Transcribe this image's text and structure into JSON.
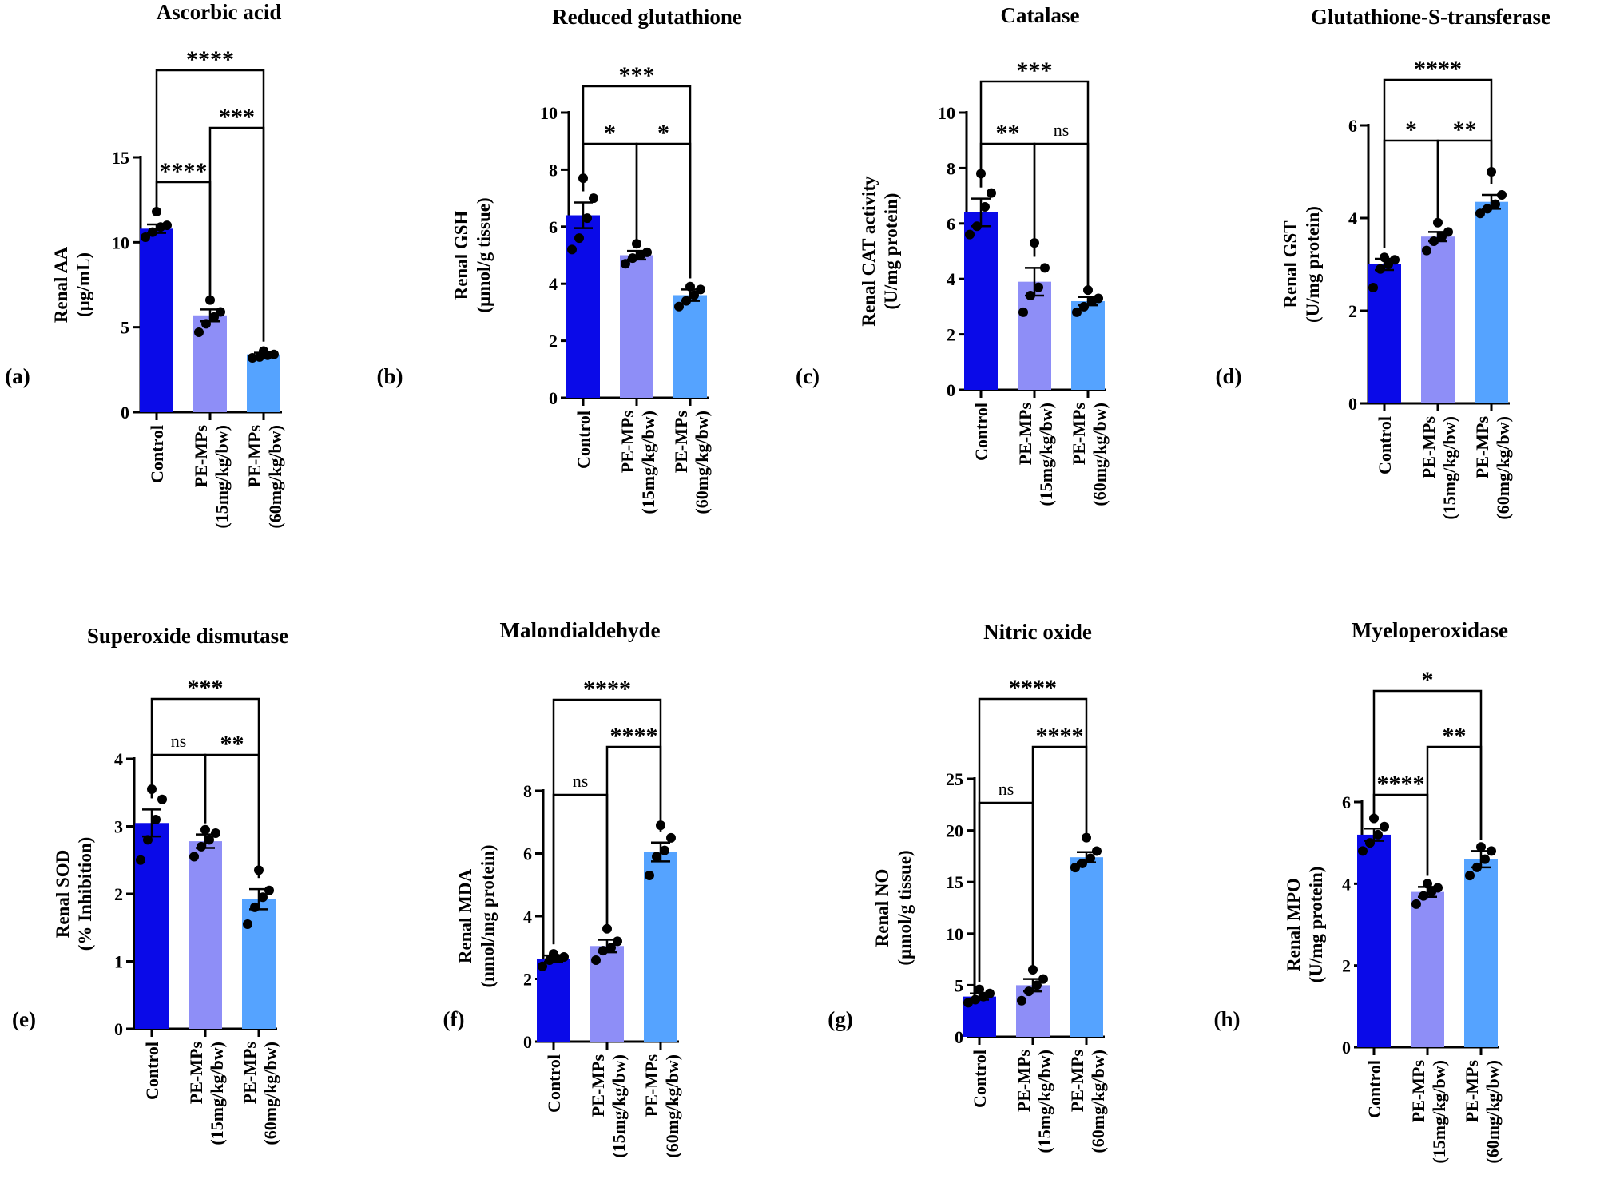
{
  "colors": {
    "control": "#0a0ae8",
    "low": "#8e8ef7",
    "high": "#55a3ff",
    "ink": "#000000"
  },
  "categories": [
    "Control",
    "PE-MPs\n(15mg/kg/bw)",
    "PE-MPs\n(60mg/kg/bw)"
  ],
  "chart_data": [
    {
      "type": "bar",
      "panel": "(a)",
      "title": "Ascorbic acid",
      "ylabel": "Renal AA",
      "yunit": "(µg/mL)",
      "ylim": [
        0,
        15
      ],
      "yticks": [
        0,
        5,
        10,
        15
      ],
      "categories": [
        "Control",
        "PE-MPs (15mg/kg/bw)",
        "PE-MPs (60mg/kg/bw)"
      ],
      "values": [
        10.8,
        5.7,
        3.4
      ],
      "sem": [
        0.25,
        0.35,
        0.1
      ],
      "points": [
        [
          10.3,
          10.6,
          10.9,
          11.0,
          11.8
        ],
        [
          4.7,
          5.2,
          5.6,
          5.9,
          6.6
        ],
        [
          3.2,
          3.25,
          3.35,
          3.4,
          3.6
        ]
      ],
      "comparisons": [
        {
          "from": 0,
          "to": 2,
          "label": "****",
          "level": 1
        },
        {
          "from": 1,
          "to": 2,
          "label": "***",
          "level": 2
        },
        {
          "from": 0,
          "to": 1,
          "label": "****",
          "level": 3
        }
      ]
    },
    {
      "type": "bar",
      "panel": "(b)",
      "title": "Reduced glutathione",
      "ylabel": "Renal GSH",
      "yunit": "(µmol/g tissue)",
      "ylim": [
        0,
        10
      ],
      "yticks": [
        0,
        2,
        4,
        6,
        8,
        10
      ],
      "categories": [
        "Control",
        "PE-MPs (15mg/kg/bw)",
        "PE-MPs (60mg/kg/bw)"
      ],
      "values": [
        6.4,
        5.0,
        3.6
      ],
      "sem": [
        0.45,
        0.15,
        0.2
      ],
      "points": [
        [
          5.2,
          5.6,
          6.3,
          7.0,
          7.7
        ],
        [
          4.7,
          4.9,
          5.0,
          5.1,
          5.4
        ],
        [
          3.2,
          3.4,
          3.6,
          3.8,
          3.9
        ]
      ],
      "comparisons": [
        {
          "from": 0,
          "to": 2,
          "label": "***",
          "level": 1
        },
        {
          "from": 0,
          "to": 1,
          "label": "*",
          "level": 2
        },
        {
          "from": 1,
          "to": 2,
          "label": "*",
          "level": 2
        }
      ]
    },
    {
      "type": "bar",
      "panel": "(c)",
      "title": "Catalase",
      "ylabel": "Renal CAT activity",
      "yunit": "(U/mg protein)",
      "ylim": [
        0,
        10
      ],
      "yticks": [
        0,
        2,
        4,
        6,
        8,
        10
      ],
      "categories": [
        "Control",
        "PE-MPs (15mg/kg/bw)",
        "PE-MPs (60mg/kg/bw)"
      ],
      "values": [
        6.4,
        3.9,
        3.2
      ],
      "sem": [
        0.5,
        0.5,
        0.15
      ],
      "points": [
        [
          5.6,
          5.9,
          6.6,
          7.1,
          7.8
        ],
        [
          2.8,
          3.4,
          3.7,
          4.4,
          5.3
        ],
        [
          2.8,
          3.0,
          3.2,
          3.3,
          3.6
        ]
      ],
      "comparisons": [
        {
          "from": 0,
          "to": 2,
          "label": "***",
          "level": 1
        },
        {
          "from": 0,
          "to": 1,
          "label": "**",
          "level": 2
        },
        {
          "from": 1,
          "to": 2,
          "label": "ns",
          "level": 2
        }
      ]
    },
    {
      "type": "bar",
      "panel": "(d)",
      "title": "Glutathione-S-transferase",
      "ylabel": "Renal GST",
      "yunit": "(U/mg protein)",
      "ylim": [
        0,
        6
      ],
      "yticks": [
        0,
        2,
        4,
        6
      ],
      "categories": [
        "Control",
        "PE-MPs (15mg/kg/bw)",
        "PE-MPs (60mg/kg/bw)"
      ],
      "values": [
        3.0,
        3.6,
        4.35
      ],
      "sem": [
        0.12,
        0.1,
        0.15
      ],
      "points": [
        [
          2.5,
          2.9,
          3.0,
          3.1,
          3.15
        ],
        [
          3.3,
          3.5,
          3.6,
          3.7,
          3.9
        ],
        [
          4.1,
          4.2,
          4.3,
          4.5,
          5.0
        ]
      ],
      "comparisons": [
        {
          "from": 0,
          "to": 2,
          "label": "****",
          "level": 1
        },
        {
          "from": 0,
          "to": 1,
          "label": "*",
          "level": 2
        },
        {
          "from": 1,
          "to": 2,
          "label": "**",
          "level": 2
        }
      ]
    },
    {
      "type": "bar",
      "panel": "(e)",
      "title": "Superoxide dismutase",
      "ylabel": "Renal SOD",
      "yunit": "(% Inhibition)",
      "ylim": [
        0,
        4
      ],
      "yticks": [
        0,
        1,
        2,
        3,
        4
      ],
      "categories": [
        "Control",
        "PE-MPs (15mg/kg/bw)",
        "PE-MPs (60mg/kg/bw)"
      ],
      "values": [
        3.05,
        2.78,
        1.92
      ],
      "sem": [
        0.2,
        0.1,
        0.15
      ],
      "points": [
        [
          2.5,
          2.8,
          3.1,
          3.4,
          3.55
        ],
        [
          2.55,
          2.7,
          2.8,
          2.9,
          2.95
        ],
        [
          1.55,
          1.8,
          1.95,
          2.05,
          2.35
        ]
      ],
      "comparisons": [
        {
          "from": 0,
          "to": 2,
          "label": "***",
          "level": 1
        },
        {
          "from": 0,
          "to": 1,
          "label": "ns",
          "level": 2
        },
        {
          "from": 1,
          "to": 2,
          "label": "**",
          "level": 2
        }
      ]
    },
    {
      "type": "bar",
      "panel": "(f)",
      "title": "Malondialdehyde",
      "ylabel": "Renal MDA",
      "yunit": "(nmol/mg protein)",
      "ylim": [
        0,
        8
      ],
      "yticks": [
        0,
        2,
        4,
        6,
        8
      ],
      "categories": [
        "Control",
        "PE-MPs (15mg/kg/bw)",
        "PE-MPs (60mg/kg/bw)"
      ],
      "values": [
        2.65,
        3.05,
        6.05
      ],
      "sem": [
        0.1,
        0.2,
        0.3
      ],
      "points": [
        [
          2.4,
          2.6,
          2.65,
          2.7,
          2.8
        ],
        [
          2.6,
          2.9,
          3.0,
          3.2,
          3.6
        ],
        [
          5.3,
          5.9,
          6.1,
          6.5,
          6.9
        ]
      ],
      "comparisons": [
        {
          "from": 0,
          "to": 2,
          "label": "****",
          "level": 1
        },
        {
          "from": 1,
          "to": 2,
          "label": "****",
          "level": 2
        },
        {
          "from": 0,
          "to": 1,
          "label": "ns",
          "level": 3
        }
      ]
    },
    {
      "type": "bar",
      "panel": "(g)",
      "title": "Nitric oxide",
      "ylabel": "Renal NO",
      "yunit": "(µmol/g tissue)",
      "ylim": [
        0,
        25
      ],
      "yticks": [
        0,
        5,
        10,
        15,
        20,
        25
      ],
      "categories": [
        "Control",
        "PE-MPs (15mg/kg/bw)",
        "PE-MPs (60mg/kg/bw)"
      ],
      "values": [
        3.9,
        5.0,
        17.4
      ],
      "sem": [
        0.3,
        0.6,
        0.5
      ],
      "points": [
        [
          3.3,
          3.6,
          3.9,
          4.2,
          4.6
        ],
        [
          3.5,
          4.4,
          5.0,
          5.6,
          6.5
        ],
        [
          16.4,
          16.8,
          17.3,
          18.0,
          19.3
        ]
      ],
      "comparisons": [
        {
          "from": 0,
          "to": 2,
          "label": "****",
          "level": 1
        },
        {
          "from": 1,
          "to": 2,
          "label": "****",
          "level": 2
        },
        {
          "from": 0,
          "to": 1,
          "label": "ns",
          "level": 3
        }
      ]
    },
    {
      "type": "bar",
      "panel": "(h)",
      "title": "Myeloperoxidase",
      "ylabel": "Renal MPO",
      "yunit": "(U/mg protein)",
      "ylim": [
        0,
        6
      ],
      "yticks": [
        0,
        2,
        4,
        6
      ],
      "categories": [
        "Control",
        "PE-MPs (15mg/kg/bw)",
        "PE-MPs (60mg/kg/bw)"
      ],
      "values": [
        5.2,
        3.8,
        4.6
      ],
      "sem": [
        0.15,
        0.12,
        0.2
      ],
      "points": [
        [
          4.8,
          5.0,
          5.2,
          5.4,
          5.6
        ],
        [
          3.5,
          3.7,
          3.8,
          3.9,
          4.0
        ],
        [
          4.2,
          4.4,
          4.6,
          4.8,
          4.9
        ]
      ],
      "comparisons": [
        {
          "from": 0,
          "to": 2,
          "label": "*",
          "level": 1
        },
        {
          "from": 1,
          "to": 2,
          "label": "**",
          "level": 2
        },
        {
          "from": 0,
          "to": 1,
          "label": "****",
          "level": 3
        }
      ]
    }
  ]
}
